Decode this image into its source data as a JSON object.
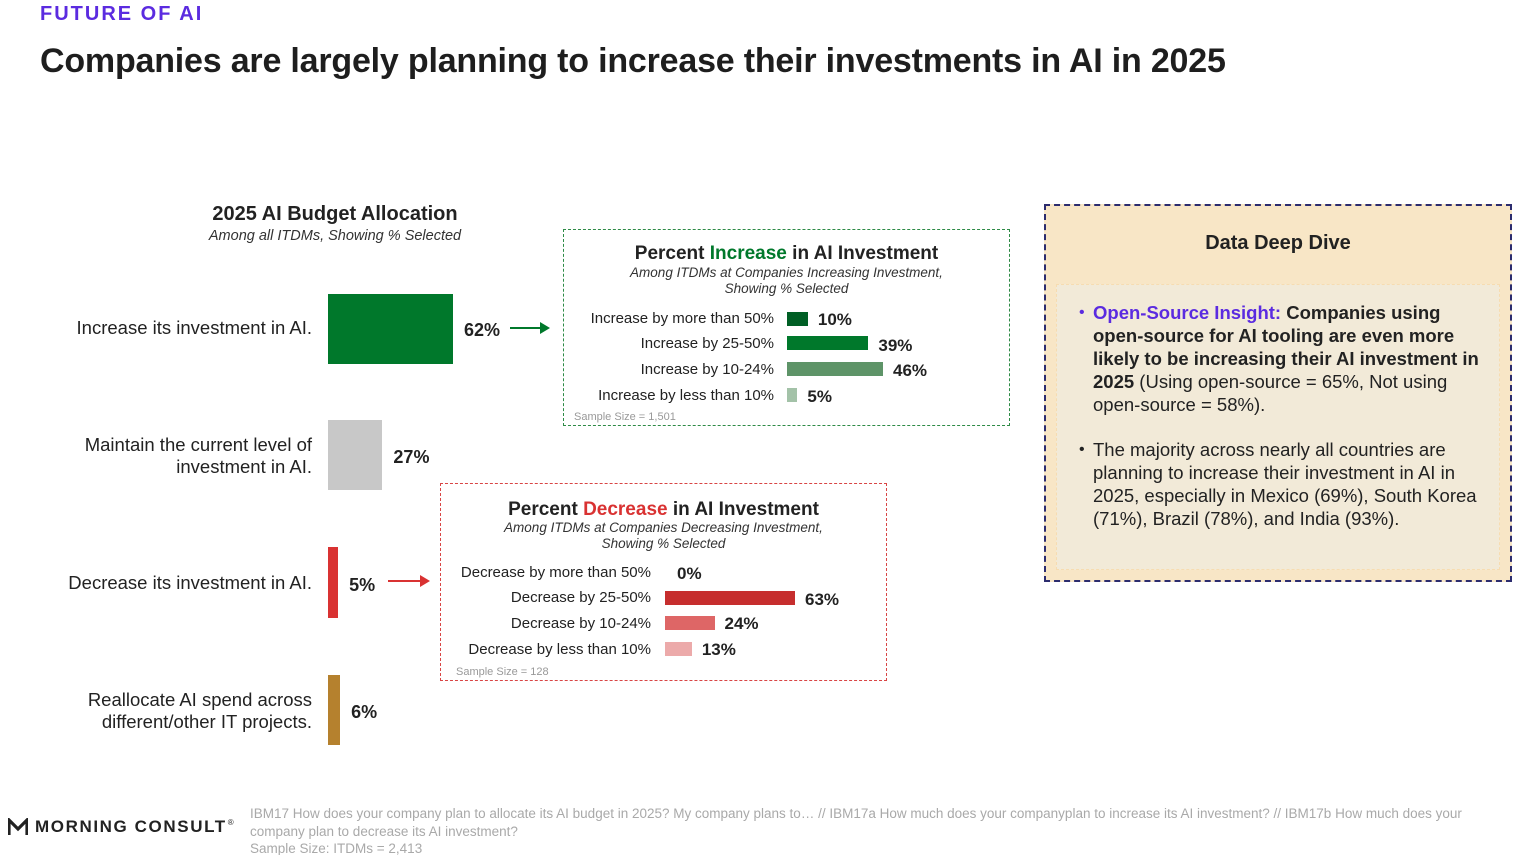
{
  "header": {
    "kicker": "FUTURE OF AI",
    "headline": "Companies are largely planning to increase their investments in AI in 2025"
  },
  "colors": {
    "kicker": "#5b2be0",
    "increase": "#00782b",
    "maintain": "#c8c8c8",
    "decrease": "#d93232",
    "reallocate": "#b5812e"
  },
  "chart_data": [
    {
      "type": "bar",
      "orientation": "horizontal",
      "title": "2025 AI Budget Allocation",
      "subtitle": "Among all ITDMs, Showing % Selected",
      "categories": [
        "Increase its investment in AI.",
        "Maintain the current level of investment in AI.",
        "Decrease its investment in AI.",
        "Reallocate AI spend across different/other IT projects."
      ],
      "category_lines": [
        [
          "Increase its investment in AI."
        ],
        [
          "Maintain the current level of",
          "investment in AI."
        ],
        [
          "Decrease its investment in AI."
        ],
        [
          "Reallocate AI spend across",
          "different/other IT projects."
        ]
      ],
      "values": [
        62,
        27,
        5,
        6
      ],
      "value_labels": [
        "62%",
        "27%",
        "5%",
        "6%"
      ],
      "colors": [
        "#00782b",
        "#c8c8c8",
        "#d93232",
        "#b5812e"
      ],
      "xlim": [
        0,
        62
      ]
    },
    {
      "type": "bar",
      "orientation": "horizontal",
      "title_parts": [
        "Percent ",
        "Increase",
        " in AI Investment"
      ],
      "subtitle_lines": [
        "Among ITDMs at Companies Increasing Investment,",
        "Showing % Selected"
      ],
      "categories": [
        "Increase by more than 50%",
        "Increase by 25-50%",
        "Increase by 10-24%",
        "Increase by less than 10%"
      ],
      "values": [
        10,
        39,
        46,
        5
      ],
      "value_labels": [
        "10%",
        "39%",
        "46%",
        "5%"
      ],
      "colors": [
        "#005f25",
        "#00782b",
        "#5e9468",
        "#a3c2a8"
      ],
      "sample": "Sample Size = 1,501",
      "xlim": [
        0,
        46
      ]
    },
    {
      "type": "bar",
      "orientation": "horizontal",
      "title_parts": [
        "Percent ",
        "Decrease",
        " in AI Investment"
      ],
      "subtitle_lines": [
        "Among ITDMs at Companies Decreasing Investment,",
        "Showing % Selected"
      ],
      "categories": [
        "Decrease by more than 50%",
        "Decrease by 25-50%",
        "Decrease by 10-24%",
        "Decrease by less than 10%"
      ],
      "values": [
        0,
        63,
        24,
        13
      ],
      "value_labels": [
        "0%",
        "63%",
        "24%",
        "13%"
      ],
      "colors": [
        "#b02020",
        "#c62e2e",
        "#de6666",
        "#ecaaaa"
      ],
      "sample": "Sample Size = 128",
      "xlim": [
        0,
        63
      ]
    }
  ],
  "deep_dive": {
    "title": "Data Deep Dive",
    "bullet1": {
      "lead": "Open-Source Insight:",
      "bold": " Companies using open-source for AI tooling are even more likely to be increasing their AI investment in 2025",
      "rest": " (Using open-source = 65%, Not using open-source = 58%)."
    },
    "bullet2": "The majority across nearly all countries are planning to increase their investment in AI in 2025, especially in Mexico (69%), South Korea (71%), Brazil (78%), and India (93%)."
  },
  "footer": {
    "logo_text": "MORNING CONSULT",
    "logo_mark": "®",
    "note_lines": [
      "IBM17 How does your company plan to allocate its AI budget in 2025? My company plans to… // IBM17a How much does your companyplan to increase its AI investment? // IBM17b How much does your",
      "company plan to decrease its AI investment?",
      "Sample Size: ITDMs = 2,413"
    ]
  }
}
